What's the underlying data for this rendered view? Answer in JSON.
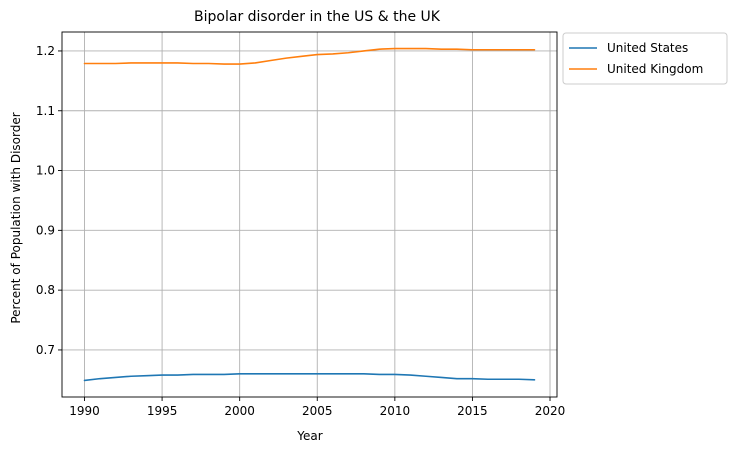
{
  "chart_data": {
    "type": "line",
    "title": "Bipolar disorder in the US & the UK",
    "xlabel": "Year",
    "ylabel": "Percent of Population with Disorder",
    "x": [
      1990,
      1991,
      1992,
      1993,
      1994,
      1995,
      1996,
      1997,
      1998,
      1999,
      2000,
      2001,
      2002,
      2003,
      2004,
      2005,
      2006,
      2007,
      2008,
      2009,
      2010,
      2011,
      2012,
      2013,
      2014,
      2015,
      2016,
      2017,
      2018,
      2019
    ],
    "series": [
      {
        "name": "United States",
        "color": "#1f77b4",
        "values": [
          0.649,
          0.652,
          0.654,
          0.656,
          0.657,
          0.658,
          0.658,
          0.659,
          0.659,
          0.659,
          0.66,
          0.66,
          0.66,
          0.66,
          0.66,
          0.66,
          0.66,
          0.66,
          0.66,
          0.659,
          0.659,
          0.658,
          0.656,
          0.654,
          0.652,
          0.652,
          0.651,
          0.651,
          0.651,
          0.65
        ]
      },
      {
        "name": "United Kingdom",
        "color": "#ff7f0e",
        "values": [
          1.179,
          1.179,
          1.179,
          1.18,
          1.18,
          1.18,
          1.18,
          1.179,
          1.179,
          1.178,
          1.178,
          1.18,
          1.184,
          1.188,
          1.191,
          1.194,
          1.195,
          1.197,
          1.2,
          1.203,
          1.204,
          1.204,
          1.204,
          1.203,
          1.203,
          1.202,
          1.202,
          1.202,
          1.202,
          1.202
        ]
      }
    ],
    "xticks": [
      1990,
      1995,
      2000,
      2005,
      2010,
      2015,
      2020
    ],
    "xtick_labels": [
      "1990",
      "1995",
      "2000",
      "2005",
      "2010",
      "2015",
      "2020"
    ],
    "yticks": [
      0.7,
      0.8,
      0.9,
      1.0,
      1.1,
      1.2
    ],
    "ytick_labels": [
      "0.7",
      "0.8",
      "0.9",
      "1.0",
      "1.1",
      "1.2"
    ],
    "xlim": [
      1988.55,
      2020.45
    ],
    "ylim": [
      0.6213,
      1.2317
    ],
    "grid": true,
    "legend_position": "outside-upper-right"
  }
}
